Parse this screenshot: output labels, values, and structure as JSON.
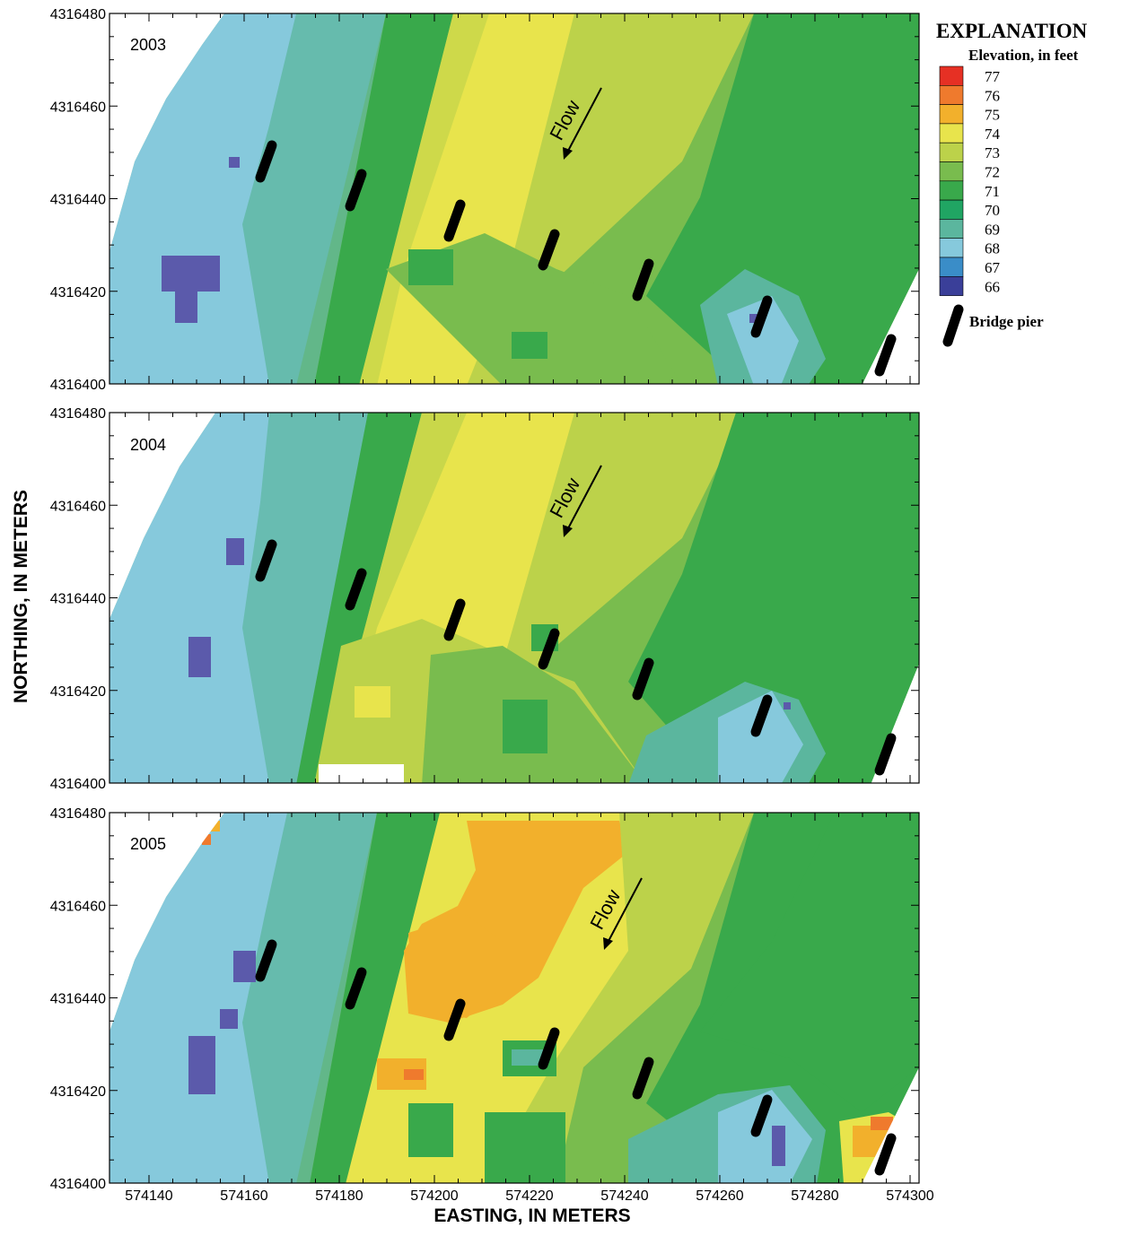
{
  "figure": {
    "y_axis_title": "NORTHING, IN METERS",
    "x_axis_title": "EASTING, IN METERS",
    "x_ticks": [
      "574140",
      "574160",
      "574180",
      "574200",
      "574220",
      "574240",
      "574260",
      "574280",
      "574300"
    ],
    "y_ticks": [
      "4316400",
      "4316420",
      "4316440",
      "4316460",
      "4316480"
    ],
    "flow_label": "Flow"
  },
  "panels": [
    {
      "year": "2003"
    },
    {
      "year": "2004"
    },
    {
      "year": "2005"
    }
  ],
  "legend": {
    "title": "EXPLANATION",
    "subtitle": "Elevation, in feet",
    "pier_label": "Bridge pier",
    "classes": [
      {
        "label": "77",
        "color": "#e63024"
      },
      {
        "label": "76",
        "color": "#ef7a2d"
      },
      {
        "label": "75",
        "color": "#f2b02c"
      },
      {
        "label": "74",
        "color": "#e8e44c"
      },
      {
        "label": "73",
        "color": "#bcd24a"
      },
      {
        "label": "72",
        "color": "#79bc4e"
      },
      {
        "label": "71",
        "color": "#39a94b"
      },
      {
        "label": "70",
        "color": "#20a563"
      },
      {
        "label": "69",
        "color": "#5bb69e"
      },
      {
        "label": "68",
        "color": "#86c9dc"
      },
      {
        "label": "67",
        "color": "#3a8dc8"
      },
      {
        "label": "66",
        "color": "#3a3f99"
      }
    ]
  }
}
